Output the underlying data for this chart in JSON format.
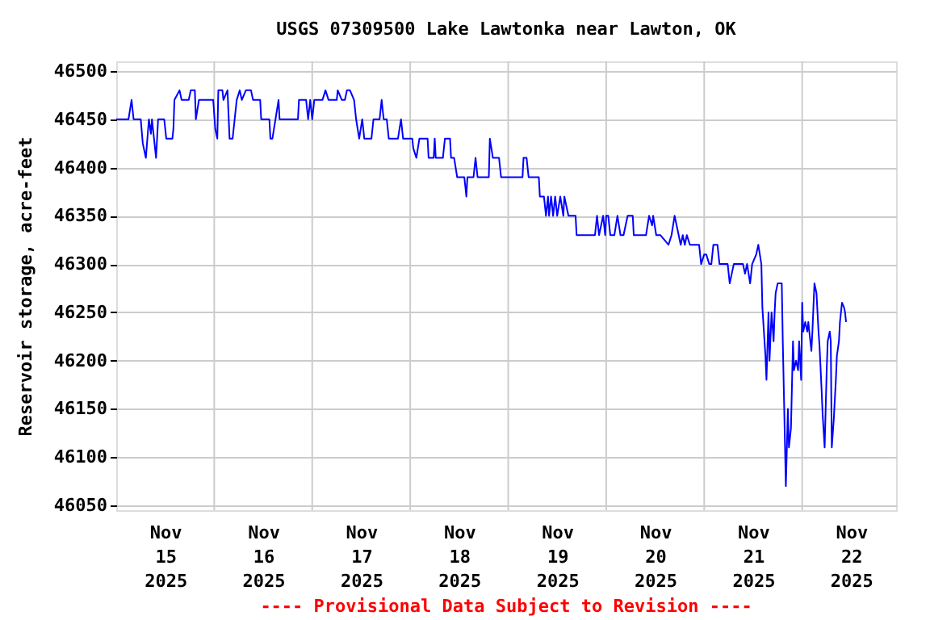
{
  "chart_data": {
    "type": "line",
    "title": "USGS 07309500 Lake Lawtonka near Lawton, OK",
    "ylabel": "Reservoir storage, acre-feet",
    "annotations": [
      "---- Provisional Data Subject to Revision ----"
    ],
    "xlim": [
      "2025-11-15T00:00",
      "2025-11-22T23:00"
    ],
    "xticks": [
      {
        "value": "2025-11-15T12:00",
        "label": "Nov\n15\n2025"
      },
      {
        "value": "2025-11-16T00:00",
        "label": null
      },
      {
        "value": "2025-11-16T12:00",
        "label": "Nov\n16\n2025"
      },
      {
        "value": "2025-11-17T00:00",
        "label": null
      },
      {
        "value": "2025-11-17T12:00",
        "label": "Nov\n17\n2025"
      },
      {
        "value": "2025-11-18T00:00",
        "label": null
      },
      {
        "value": "2025-11-18T12:00",
        "label": "Nov\n18\n2025"
      },
      {
        "value": "2025-11-19T00:00",
        "label": null
      },
      {
        "value": "2025-11-19T12:00",
        "label": "Nov\n19\n2025"
      },
      {
        "value": "2025-11-20T00:00",
        "label": null
      },
      {
        "value": "2025-11-20T12:00",
        "label": "Nov\n20\n2025"
      },
      {
        "value": "2025-11-21T00:00",
        "label": null
      },
      {
        "value": "2025-11-21T12:00",
        "label": "Nov\n21\n2025"
      },
      {
        "value": "2025-11-22T00:00",
        "label": null
      },
      {
        "value": "2025-11-22T12:00",
        "label": "Nov\n22\n2025"
      }
    ],
    "ylim": [
      46045,
      46510
    ],
    "yticks": [
      46050,
      46100,
      46150,
      46200,
      46250,
      46300,
      46350,
      46400,
      46450,
      46500
    ],
    "grid": true,
    "marker": "none",
    "line_style": "solid",
    "series": [
      {
        "color": "#0000ff",
        "x": [
          "2025-11-15T00:00",
          "2025-11-15T03:00",
          "2025-11-15T03:45",
          "2025-11-15T04:15",
          "2025-11-15T06:00",
          "2025-11-15T06:30",
          "2025-11-15T07:15",
          "2025-11-15T08:00",
          "2025-11-15T08:30",
          "2025-11-15T08:45",
          "2025-11-15T09:45",
          "2025-11-15T10:15",
          "2025-11-15T11:45",
          "2025-11-15T12:15",
          "2025-11-15T13:45",
          "2025-11-15T14:00",
          "2025-11-15T14:15",
          "2025-11-15T15:30",
          "2025-11-15T16:00",
          "2025-11-15T17:45",
          "2025-11-15T18:15",
          "2025-11-15T19:15",
          "2025-11-15T19:30",
          "2025-11-15T20:15",
          "2025-11-15T23:45",
          "2025-11-16T00:15",
          "2025-11-16T00:45",
          "2025-11-16T01:00",
          "2025-11-16T02:00",
          "2025-11-16T02:15",
          "2025-11-16T03:15",
          "2025-11-16T03:45",
          "2025-11-16T04:30",
          "2025-11-16T05:00",
          "2025-11-16T05:30",
          "2025-11-16T06:15",
          "2025-11-16T06:45",
          "2025-11-16T07:45",
          "2025-11-16T09:00",
          "2025-11-16T09:30",
          "2025-11-16T11:15",
          "2025-11-16T11:30",
          "2025-11-16T13:30",
          "2025-11-16T13:45",
          "2025-11-16T14:15",
          "2025-11-16T15:00",
          "2025-11-16T15:45",
          "2025-11-16T16:00",
          "2025-11-16T20:30",
          "2025-11-16T20:45",
          "2025-11-16T22:30",
          "2025-11-16T23:00",
          "2025-11-16T23:30",
          "2025-11-17T00:00",
          "2025-11-17T00:30",
          "2025-11-17T02:30",
          "2025-11-17T03:15",
          "2025-11-17T04:00",
          "2025-11-17T06:00",
          "2025-11-17T06:15",
          "2025-11-17T07:15",
          "2025-11-17T08:00",
          "2025-11-17T08:30",
          "2025-11-17T09:15",
          "2025-11-17T10:15",
          "2025-11-17T10:45",
          "2025-11-17T11:30",
          "2025-11-17T12:15",
          "2025-11-17T12:45",
          "2025-11-17T14:30",
          "2025-11-17T15:00",
          "2025-11-17T16:30",
          "2025-11-17T17:00",
          "2025-11-17T17:30",
          "2025-11-17T18:15",
          "2025-11-17T18:45",
          "2025-11-17T21:00",
          "2025-11-17T21:45",
          "2025-11-17T22:15",
          "2025-11-18T00:30",
          "2025-11-18T00:45",
          "2025-11-18T01:30",
          "2025-11-18T02:15",
          "2025-11-18T04:15",
          "2025-11-18T04:30",
          "2025-11-18T05:45",
          "2025-11-18T06:00",
          "2025-11-18T06:15",
          "2025-11-18T08:00",
          "2025-11-18T08:30",
          "2025-11-18T09:45",
          "2025-11-18T10:00",
          "2025-11-18T10:45",
          "2025-11-18T11:30",
          "2025-11-18T13:15",
          "2025-11-18T13:45",
          "2025-11-18T14:00",
          "2025-11-18T15:30",
          "2025-11-18T16:00",
          "2025-11-18T16:30",
          "2025-11-18T19:15",
          "2025-11-18T19:30",
          "2025-11-18T20:15",
          "2025-11-18T21:45",
          "2025-11-18T22:15",
          "2025-11-19T03:30",
          "2025-11-19T03:45",
          "2025-11-19T04:30",
          "2025-11-19T05:00",
          "2025-11-19T07:30",
          "2025-11-19T07:45",
          "2025-11-19T08:45",
          "2025-11-19T09:15",
          "2025-11-19T09:45",
          "2025-11-19T10:00",
          "2025-11-19T10:30",
          "2025-11-19T11:00",
          "2025-11-19T11:30",
          "2025-11-19T12:00",
          "2025-11-19T12:45",
          "2025-11-19T13:30",
          "2025-11-19T13:45",
          "2025-11-19T14:45",
          "2025-11-19T16:30",
          "2025-11-19T16:45",
          "2025-11-19T21:15",
          "2025-11-19T21:45",
          "2025-11-19T22:15",
          "2025-11-19T23:15",
          "2025-11-19T23:45",
          "2025-11-20T00:00",
          "2025-11-20T00:30",
          "2025-11-20T01:00",
          "2025-11-20T02:00",
          "2025-11-20T02:45",
          "2025-11-20T03:30",
          "2025-11-20T04:15",
          "2025-11-20T05:15",
          "2025-11-20T06:30",
          "2025-11-20T06:45",
          "2025-11-20T09:45",
          "2025-11-20T10:30",
          "2025-11-20T11:15",
          "2025-11-20T11:30",
          "2025-11-20T12:15",
          "2025-11-20T13:15",
          "2025-11-20T15:15",
          "2025-11-20T16:00",
          "2025-11-20T16:45",
          "2025-11-20T17:15",
          "2025-11-20T17:45",
          "2025-11-20T18:15",
          "2025-11-20T18:45",
          "2025-11-20T19:15",
          "2025-11-20T19:45",
          "2025-11-20T20:30",
          "2025-11-20T22:45",
          "2025-11-20T23:15",
          "2025-11-21T00:00",
          "2025-11-21T00:30",
          "2025-11-21T01:15",
          "2025-11-21T01:45",
          "2025-11-21T02:15",
          "2025-11-21T03:15",
          "2025-11-21T03:45",
          "2025-11-21T05:45",
          "2025-11-21T06:15",
          "2025-11-21T07:15",
          "2025-11-21T09:30",
          "2025-11-21T10:00",
          "2025-11-21T10:30",
          "2025-11-21T11:15",
          "2025-11-21T11:45",
          "2025-11-21T12:45",
          "2025-11-21T13:15",
          "2025-11-21T14:00",
          "2025-11-21T14:15",
          "2025-11-21T15:00",
          "2025-11-21T15:15",
          "2025-11-21T15:45",
          "2025-11-21T16:00",
          "2025-11-21T16:30",
          "2025-11-21T17:00",
          "2025-11-21T17:15",
          "2025-11-21T17:30",
          "2025-11-21T18:00",
          "2025-11-21T19:00",
          "2025-11-21T19:15",
          "2025-11-21T20:00",
          "2025-11-21T20:30",
          "2025-11-21T20:45",
          "2025-11-21T21:15",
          "2025-11-21T21:45",
          "2025-11-21T22:00",
          "2025-11-21T22:30",
          "2025-11-21T23:00",
          "2025-11-21T23:15",
          "2025-11-21T23:45",
          "2025-11-22T00:00",
          "2025-11-22T00:15",
          "2025-11-22T00:45",
          "2025-11-22T01:15",
          "2025-11-22T01:30",
          "2025-11-22T02:00",
          "2025-11-22T02:15",
          "2025-11-22T02:30",
          "2025-11-22T03:00",
          "2025-11-22T03:30",
          "2025-11-22T04:00",
          "2025-11-22T04:15",
          "2025-11-22T04:45",
          "2025-11-22T05:00",
          "2025-11-22T05:30",
          "2025-11-22T06:00",
          "2025-11-22T06:15",
          "2025-11-22T06:45",
          "2025-11-22T07:00",
          "2025-11-22T07:15",
          "2025-11-22T07:45",
          "2025-11-22T08:15",
          "2025-11-22T08:30",
          "2025-11-22T09:00",
          "2025-11-22T09:15",
          "2025-11-22T09:45",
          "2025-11-22T10:15",
          "2025-11-22T10:30",
          "2025-11-22T10:45"
        ],
        "values": [
          46450,
          46450,
          46470,
          46450,
          46450,
          46425,
          46410,
          46450,
          46435,
          46450,
          46410,
          46450,
          46450,
          46430,
          46430,
          46440,
          46470,
          46480,
          46470,
          46470,
          46480,
          46480,
          46450,
          46470,
          46470,
          46440,
          46430,
          46480,
          46480,
          46470,
          46480,
          46430,
          46430,
          46450,
          46470,
          46480,
          46470,
          46480,
          46480,
          46470,
          46470,
          46450,
          46450,
          46430,
          46430,
          46450,
          46470,
          46450,
          46450,
          46470,
          46470,
          46450,
          46470,
          46450,
          46470,
          46470,
          46480,
          46470,
          46470,
          46480,
          46470,
          46470,
          46480,
          46480,
          46470,
          46450,
          46430,
          46450,
          46430,
          46430,
          46450,
          46450,
          46470,
          46450,
          46450,
          46430,
          46430,
          46450,
          46430,
          46430,
          46420,
          46410,
          46430,
          46430,
          46410,
          46410,
          46430,
          46410,
          46410,
          46430,
          46430,
          46410,
          46410,
          46390,
          46390,
          46370,
          46390,
          46390,
          46410,
          46390,
          46390,
          46430,
          46410,
          46410,
          46390,
          46390,
          46410,
          46410,
          46390,
          46390,
          46370,
          46370,
          46350,
          46370,
          46350,
          46370,
          46350,
          46370,
          46350,
          46370,
          46350,
          46370,
          46350,
          46350,
          46330,
          46330,
          46350,
          46330,
          46350,
          46330,
          46350,
          46350,
          46330,
          46330,
          46350,
          46330,
          46330,
          46350,
          46350,
          46330,
          46330,
          46350,
          46340,
          46350,
          46330,
          46330,
          46320,
          46330,
          46350,
          46340,
          46330,
          46320,
          46330,
          46320,
          46330,
          46320,
          46320,
          46300,
          46310,
          46310,
          46300,
          46300,
          46320,
          46320,
          46300,
          46300,
          46280,
          46300,
          46300,
          46290,
          46300,
          46280,
          46300,
          46310,
          46320,
          46300,
          46255,
          46205,
          46180,
          46250,
          46200,
          46250,
          46220,
          46250,
          46270,
          46280,
          46280,
          46220,
          46070,
          46150,
          46110,
          46130,
          46220,
          46190,
          46200,
          46190,
          46220,
          46180,
          46260,
          46230,
          46240,
          46230,
          46240,
          46220,
          46210,
          46230,
          46280,
          46270,
          46230,
          46215,
          46170,
          46145,
          46110,
          46190,
          46220,
          46230,
          46220,
          46110,
          46140,
          46180,
          46205,
          46220,
          46240,
          46260,
          46255,
          46250,
          46240
        ]
      }
    ]
  }
}
